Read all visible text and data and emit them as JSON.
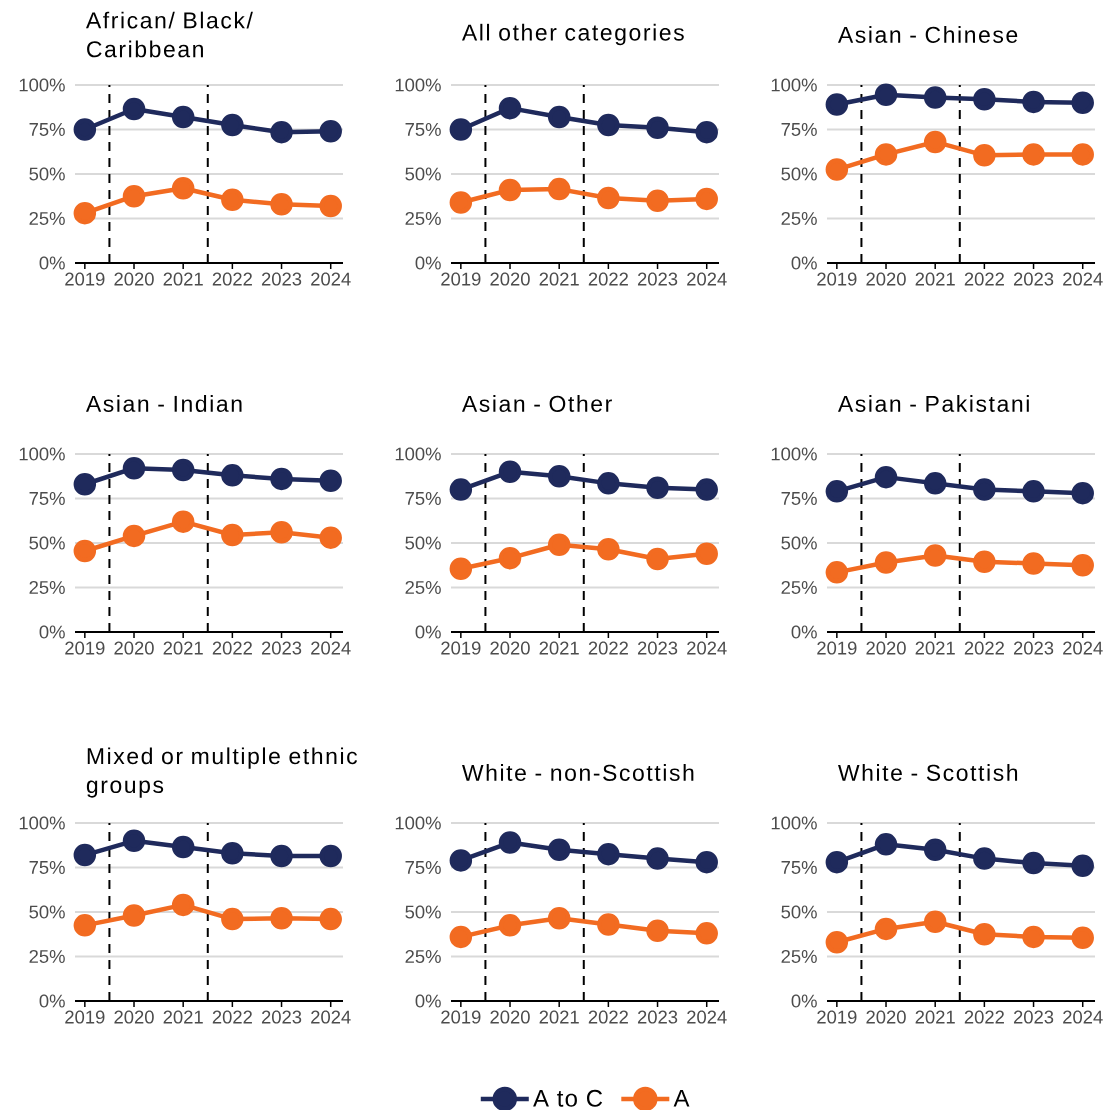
{
  "chart_data": [
    {
      "type": "line",
      "title": "African/ Black/ Caribbean",
      "x": [
        2019,
        2020,
        2021,
        2022,
        2023,
        2024
      ],
      "xlim": [
        2018.8,
        2024.25
      ],
      "xticks": [
        2019,
        2020,
        2021,
        2022,
        2023,
        2024
      ],
      "ylim": [
        0,
        100
      ],
      "yticks": [
        {
          "value": 0,
          "label": "0%"
        },
        {
          "value": 25,
          "label": "25%"
        },
        {
          "value": 50,
          "label": "50%"
        },
        {
          "value": 75,
          "label": "75%"
        },
        {
          "value": 100,
          "label": "100%"
        }
      ],
      "grid": "y",
      "marker": "circle",
      "ref_lines": [
        {
          "axis": "x",
          "value": 2019.5,
          "color": "#000000",
          "line_style": "dashed"
        },
        {
          "axis": "x",
          "value": 2021.5,
          "color": "#000000",
          "line_style": "dashed"
        }
      ],
      "series": [
        {
          "color": "#1f2a5c",
          "values": [
            75,
            86.5,
            82,
            77.5,
            73.5,
            74
          ]
        },
        {
          "color": "#f26b21",
          "values": [
            28,
            37.5,
            42,
            35.5,
            33,
            32
          ]
        }
      ]
    },
    {
      "type": "line",
      "title": "All other categories",
      "x": [
        2019,
        2020,
        2021,
        2022,
        2023,
        2024
      ],
      "xlim": [
        2018.8,
        2024.25
      ],
      "xticks": [
        2019,
        2020,
        2021,
        2022,
        2023,
        2024
      ],
      "ylim": [
        0,
        100
      ],
      "yticks": [
        {
          "value": 0,
          "label": "0%"
        },
        {
          "value": 25,
          "label": "25%"
        },
        {
          "value": 50,
          "label": "50%"
        },
        {
          "value": 75,
          "label": "75%"
        },
        {
          "value": 100,
          "label": "100%"
        }
      ],
      "grid": "y",
      "marker": "circle",
      "ref_lines": [
        {
          "axis": "x",
          "value": 2019.5,
          "color": "#000000",
          "line_style": "dashed"
        },
        {
          "axis": "x",
          "value": 2021.5,
          "color": "#000000",
          "line_style": "dashed"
        }
      ],
      "series": [
        {
          "color": "#1f2a5c",
          "values": [
            75,
            87,
            82,
            77.5,
            76,
            73.5
          ]
        },
        {
          "color": "#f26b21",
          "values": [
            34,
            41,
            41.5,
            36.5,
            35,
            36
          ]
        }
      ]
    },
    {
      "type": "line",
      "title": "Asian - Chinese",
      "x": [
        2019,
        2020,
        2021,
        2022,
        2023,
        2024
      ],
      "xlim": [
        2018.8,
        2024.25
      ],
      "xticks": [
        2019,
        2020,
        2021,
        2022,
        2023,
        2024
      ],
      "ylim": [
        0,
        100
      ],
      "yticks": [
        {
          "value": 0,
          "label": "0%"
        },
        {
          "value": 25,
          "label": "25%"
        },
        {
          "value": 50,
          "label": "50%"
        },
        {
          "value": 75,
          "label": "75%"
        },
        {
          "value": 100,
          "label": "100%"
        }
      ],
      "grid": "y",
      "marker": "circle",
      "ref_lines": [
        {
          "axis": "x",
          "value": 2019.5,
          "color": "#000000",
          "line_style": "dashed"
        },
        {
          "axis": "x",
          "value": 2021.5,
          "color": "#000000",
          "line_style": "dashed"
        }
      ],
      "series": [
        {
          "color": "#1f2a5c",
          "values": [
            89,
            94.5,
            93,
            92,
            90.5,
            90
          ]
        },
        {
          "color": "#f26b21",
          "values": [
            52.5,
            61,
            68,
            60.5,
            61,
            61
          ]
        }
      ]
    },
    {
      "type": "line",
      "title": "Asian - Indian",
      "x": [
        2019,
        2020,
        2021,
        2022,
        2023,
        2024
      ],
      "xlim": [
        2018.8,
        2024.25
      ],
      "xticks": [
        2019,
        2020,
        2021,
        2022,
        2023,
        2024
      ],
      "ylim": [
        0,
        100
      ],
      "yticks": [
        {
          "value": 0,
          "label": "0%"
        },
        {
          "value": 25,
          "label": "25%"
        },
        {
          "value": 50,
          "label": "50%"
        },
        {
          "value": 75,
          "label": "75%"
        },
        {
          "value": 100,
          "label": "100%"
        }
      ],
      "grid": "y",
      "marker": "circle",
      "ref_lines": [
        {
          "axis": "x",
          "value": 2019.5,
          "color": "#000000",
          "line_style": "dashed"
        },
        {
          "axis": "x",
          "value": 2021.5,
          "color": "#000000",
          "line_style": "dashed"
        }
      ],
      "series": [
        {
          "color": "#1f2a5c",
          "values": [
            83,
            92,
            91,
            88,
            86,
            85
          ]
        },
        {
          "color": "#f26b21",
          "values": [
            45.5,
            54,
            62,
            54.5,
            56,
            53
          ]
        }
      ]
    },
    {
      "type": "line",
      "title": "Asian - Other",
      "x": [
        2019,
        2020,
        2021,
        2022,
        2023,
        2024
      ],
      "xlim": [
        2018.8,
        2024.25
      ],
      "xticks": [
        2019,
        2020,
        2021,
        2022,
        2023,
        2024
      ],
      "ylim": [
        0,
        100
      ],
      "yticks": [
        {
          "value": 0,
          "label": "0%"
        },
        {
          "value": 25,
          "label": "25%"
        },
        {
          "value": 50,
          "label": "50%"
        },
        {
          "value": 75,
          "label": "75%"
        },
        {
          "value": 100,
          "label": "100%"
        }
      ],
      "grid": "y",
      "marker": "circle",
      "ref_lines": [
        {
          "axis": "x",
          "value": 2019.5,
          "color": "#000000",
          "line_style": "dashed"
        },
        {
          "axis": "x",
          "value": 2021.5,
          "color": "#000000",
          "line_style": "dashed"
        }
      ],
      "series": [
        {
          "color": "#1f2a5c",
          "values": [
            80,
            90,
            87.5,
            83.5,
            81,
            80
          ]
        },
        {
          "color": "#f26b21",
          "values": [
            35.5,
            41.5,
            49,
            46.5,
            41,
            44
          ]
        }
      ]
    },
    {
      "type": "line",
      "title": "Asian - Pakistani",
      "x": [
        2019,
        2020,
        2021,
        2022,
        2023,
        2024
      ],
      "xlim": [
        2018.8,
        2024.25
      ],
      "xticks": [
        2019,
        2020,
        2021,
        2022,
        2023,
        2024
      ],
      "ylim": [
        0,
        100
      ],
      "yticks": [
        {
          "value": 0,
          "label": "0%"
        },
        {
          "value": 25,
          "label": "25%"
        },
        {
          "value": 50,
          "label": "50%"
        },
        {
          "value": 75,
          "label": "75%"
        },
        {
          "value": 100,
          "label": "100%"
        }
      ],
      "grid": "y",
      "marker": "circle",
      "ref_lines": [
        {
          "axis": "x",
          "value": 2019.5,
          "color": "#000000",
          "line_style": "dashed"
        },
        {
          "axis": "x",
          "value": 2021.5,
          "color": "#000000",
          "line_style": "dashed"
        }
      ],
      "series": [
        {
          "color": "#1f2a5c",
          "values": [
            79,
            87,
            83.5,
            80,
            79,
            78
          ]
        },
        {
          "color": "#f26b21",
          "values": [
            33.5,
            39,
            43,
            39.5,
            38.5,
            37.5
          ]
        }
      ]
    },
    {
      "type": "line",
      "title": "Mixed or multiple ethnic groups",
      "x": [
        2019,
        2020,
        2021,
        2022,
        2023,
        2024
      ],
      "xlim": [
        2018.8,
        2024.25
      ],
      "xticks": [
        2019,
        2020,
        2021,
        2022,
        2023,
        2024
      ],
      "ylim": [
        0,
        100
      ],
      "yticks": [
        {
          "value": 0,
          "label": "0%"
        },
        {
          "value": 25,
          "label": "25%"
        },
        {
          "value": 50,
          "label": "50%"
        },
        {
          "value": 75,
          "label": "75%"
        },
        {
          "value": 100,
          "label": "100%"
        }
      ],
      "grid": "y",
      "marker": "circle",
      "ref_lines": [
        {
          "axis": "x",
          "value": 2019.5,
          "color": "#000000",
          "line_style": "dashed"
        },
        {
          "axis": "x",
          "value": 2021.5,
          "color": "#000000",
          "line_style": "dashed"
        }
      ],
      "series": [
        {
          "color": "#1f2a5c",
          "values": [
            82,
            90,
            86.5,
            83,
            81.5,
            81.5
          ]
        },
        {
          "color": "#f26b21",
          "values": [
            42.5,
            48,
            54,
            46,
            46.5,
            46
          ]
        }
      ]
    },
    {
      "type": "line",
      "title": "White - non-Scottish",
      "x": [
        2019,
        2020,
        2021,
        2022,
        2023,
        2024
      ],
      "xlim": [
        2018.8,
        2024.25
      ],
      "xticks": [
        2019,
        2020,
        2021,
        2022,
        2023,
        2024
      ],
      "ylim": [
        0,
        100
      ],
      "yticks": [
        {
          "value": 0,
          "label": "0%"
        },
        {
          "value": 25,
          "label": "25%"
        },
        {
          "value": 50,
          "label": "50%"
        },
        {
          "value": 75,
          "label": "75%"
        },
        {
          "value": 100,
          "label": "100%"
        }
      ],
      "grid": "y",
      "marker": "circle",
      "legend": "bottom",
      "ref_lines": [
        {
          "axis": "x",
          "value": 2019.5,
          "color": "#000000",
          "line_style": "dashed"
        },
        {
          "axis": "x",
          "value": 2021.5,
          "color": "#000000",
          "line_style": "dashed"
        }
      ],
      "series": [
        {
          "name": "A to C",
          "color": "#1f2a5c",
          "values": [
            79,
            89,
            85,
            82.5,
            80,
            78
          ]
        },
        {
          "name": "A",
          "color": "#f26b21",
          "values": [
            36,
            42.5,
            46.5,
            43,
            39.5,
            38
          ]
        }
      ]
    },
    {
      "type": "line",
      "title": "White - Scottish",
      "x": [
        2019,
        2020,
        2021,
        2022,
        2023,
        2024
      ],
      "xlim": [
        2018.8,
        2024.25
      ],
      "xticks": [
        2019,
        2020,
        2021,
        2022,
        2023,
        2024
      ],
      "ylim": [
        0,
        100
      ],
      "yticks": [
        {
          "value": 0,
          "label": "0%"
        },
        {
          "value": 25,
          "label": "25%"
        },
        {
          "value": 50,
          "label": "50%"
        },
        {
          "value": 75,
          "label": "75%"
        },
        {
          "value": 100,
          "label": "100%"
        }
      ],
      "grid": "y",
      "marker": "circle",
      "ref_lines": [
        {
          "axis": "x",
          "value": 2019.5,
          "color": "#000000",
          "line_style": "dashed"
        },
        {
          "axis": "x",
          "value": 2021.5,
          "color": "#000000",
          "line_style": "dashed"
        }
      ],
      "series": [
        {
          "color": "#1f2a5c",
          "values": [
            78,
            88,
            85,
            80,
            77.5,
            76
          ]
        },
        {
          "color": "#f26b21",
          "values": [
            33,
            40.5,
            44.5,
            37.5,
            36,
            35.5
          ]
        }
      ]
    }
  ]
}
